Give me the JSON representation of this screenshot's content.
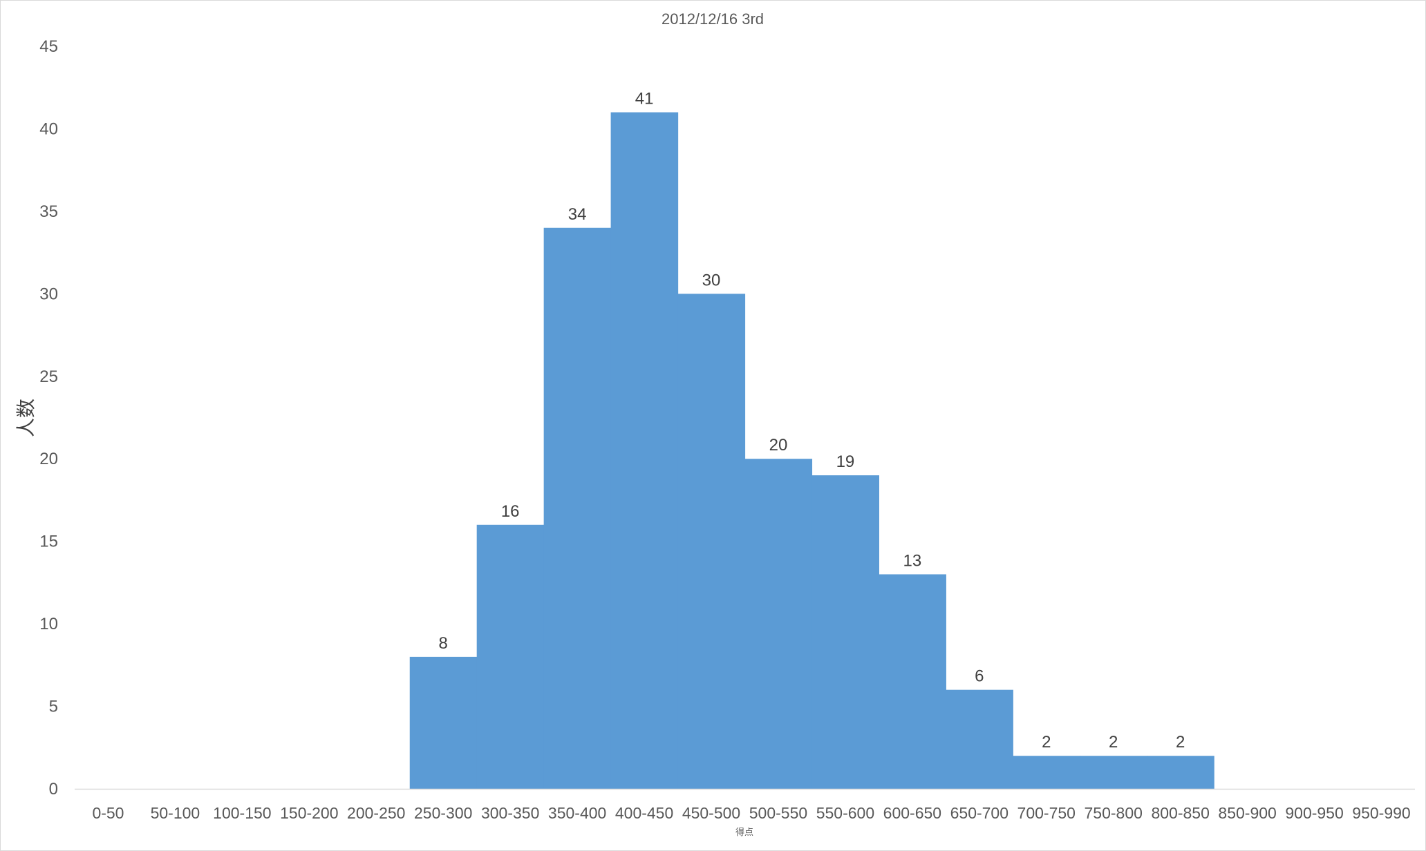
{
  "chart_data": {
    "type": "bar",
    "title": "2012/12/16 3rd",
    "xlabel": "得点",
    "ylabel": "人数",
    "categories": [
      "0-50",
      "50-100",
      "100-150",
      "150-200",
      "200-250",
      "250-300",
      "300-350",
      "350-400",
      "400-450",
      "450-500",
      "500-550",
      "550-600",
      "600-650",
      "650-700",
      "700-750",
      "750-800",
      "800-850",
      "850-900",
      "900-950",
      "950-990"
    ],
    "values": [
      0,
      0,
      0,
      0,
      0,
      8,
      16,
      34,
      41,
      30,
      20,
      19,
      13,
      6,
      2,
      2,
      2,
      0,
      0,
      0
    ],
    "ylim": [
      0,
      45
    ],
    "yticks": [
      0,
      5,
      10,
      15,
      20,
      25,
      30,
      35,
      40,
      45
    ],
    "bar_color": "#5b9bd5",
    "gap_width": 0,
    "grid": false,
    "legend": "none",
    "data_labels": true
  }
}
